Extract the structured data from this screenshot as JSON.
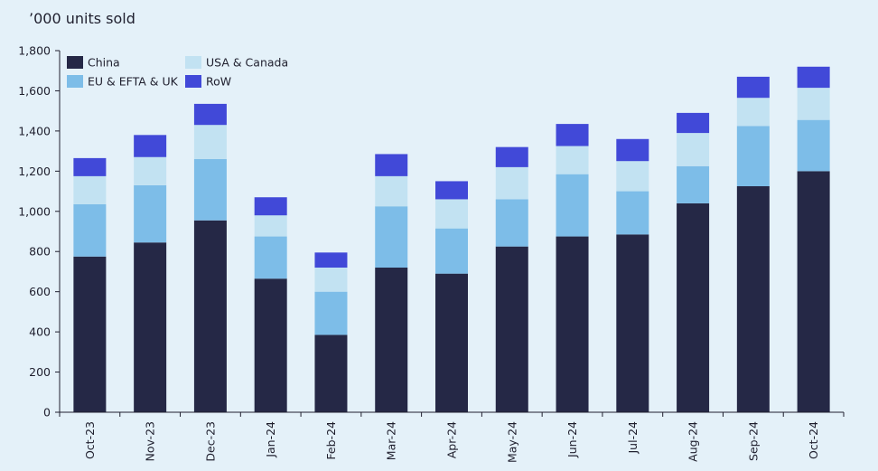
{
  "chart_data": {
    "type": "bar",
    "stacked": true,
    "title": "",
    "unit_label": "’000 units sold",
    "xlabel": "",
    "ylabel": "’000 units sold",
    "ylim": [
      0,
      1800
    ],
    "yticks": [
      0,
      200,
      400,
      600,
      800,
      1000,
      1200,
      1400,
      1600,
      1800
    ],
    "ytick_labels": [
      "0",
      "200",
      "400",
      "600",
      "800",
      "1,000",
      "1,200",
      "1,400",
      "1,600",
      "1,800"
    ],
    "grid": false,
    "legend_position": "top-left",
    "categories": [
      "Oct-23",
      "Nov-23",
      "Dec-23",
      "Jan-24",
      "Feb-24",
      "Mar-24",
      "Apr-24",
      "May-24",
      "Jun-24",
      "Jul-24",
      "Aug-24",
      "Sep-24",
      "Oct-24"
    ],
    "series": [
      {
        "name": "China",
        "color": "#252846",
        "values": [
          775,
          845,
          955,
          665,
          385,
          720,
          690,
          825,
          875,
          885,
          1040,
          1125,
          1200
        ]
      },
      {
        "name": "EU & EFTA & UK",
        "color": "#7dbde8",
        "values": [
          260,
          285,
          305,
          210,
          215,
          305,
          225,
          235,
          310,
          215,
          185,
          300,
          255
        ]
      },
      {
        "name": "USA & Canada",
        "color": "#c2e2f2",
        "values": [
          140,
          140,
          170,
          105,
          120,
          150,
          145,
          160,
          140,
          150,
          165,
          140,
          160
        ]
      },
      {
        "name": "RoW",
        "color": "#4149d8",
        "values": [
          90,
          110,
          105,
          90,
          75,
          110,
          90,
          100,
          110,
          110,
          100,
          105,
          105
        ]
      }
    ]
  }
}
